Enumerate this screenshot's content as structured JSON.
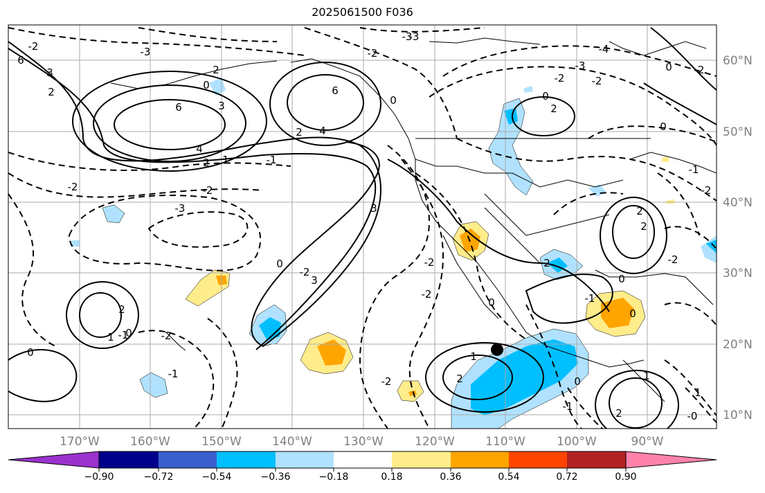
{
  "title": "2025061500 F036",
  "axes": {
    "lon_labels": [
      "170°W",
      "160°W",
      "150°W",
      "140°W",
      "130°W",
      "120°W",
      "110°W",
      "100°W",
      "90°W"
    ],
    "lat_labels": [
      "60°N",
      "50°N",
      "40°N",
      "30°N",
      "20°N",
      "10°N"
    ]
  },
  "colorbar": {
    "tick_labels": [
      "−0.90",
      "−0.72",
      "−0.54",
      "−0.36",
      "−0.18",
      "0.18",
      "0.36",
      "0.54",
      "0.72",
      "0.90"
    ],
    "colors": [
      "#9a32cd",
      "#00008b",
      "#3a5fcd",
      "#00bfff",
      "#b0e2ff",
      "#ffffff",
      "#ffec8b",
      "#ffa500",
      "#ff4500",
      "#b22222",
      "#ff82ab"
    ]
  },
  "contour_labels": [
    "-3",
    "-2",
    "-2",
    "-3",
    "-4",
    "6",
    "3",
    "2",
    "2",
    "6",
    "4",
    "2",
    "-2",
    "0",
    "0",
    "3",
    "4",
    "6",
    "2",
    "1",
    "-1",
    "-2",
    "-3",
    "-2",
    "-2",
    "-3",
    "0",
    "2",
    "3",
    "3",
    "0",
    "-1",
    "-2",
    "0",
    "2",
    "1",
    "0",
    "-1",
    "-2",
    "0",
    "1",
    "2",
    "-2",
    "2",
    "0",
    "-1",
    "0",
    "-1",
    "1",
    "2",
    "0",
    "-3",
    "-1",
    "-2",
    "0",
    "2",
    "-2",
    "2",
    "-2",
    "0",
    "1",
    "-2",
    "-2",
    "-0"
  ],
  "marker": {
    "label": "point marker"
  }
}
